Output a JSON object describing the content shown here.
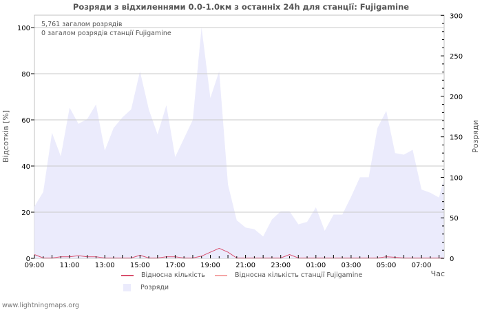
{
  "title": "Розряди з відхиленнями 0.0-1.0км з останніх 24h для станції: Fujigamine",
  "info": {
    "total_discharges": "5,761 загалом розрядів",
    "station_discharges": "0 загалом розрядів станції Fujigamine"
  },
  "axes": {
    "left_title": "Відсотків   [%]",
    "right_title": "Розряди",
    "x_title": "Час",
    "left_ticks": [
      "0",
      "20",
      "40",
      "60",
      "80",
      "100"
    ],
    "right_ticks": [
      "0",
      "50",
      "100",
      "150",
      "200",
      "250",
      "300"
    ],
    "x_ticks": [
      "09:00",
      "11:00",
      "13:00",
      "15:00",
      "17:00",
      "19:00",
      "21:00",
      "23:00",
      "01:00",
      "03:00",
      "05:00",
      "07:00"
    ]
  },
  "legend": [
    {
      "label": "Відносна кількість",
      "kind": "line",
      "color": "#d9506e"
    },
    {
      "label": "Відносна кількість станції Fujigamine",
      "kind": "line",
      "color": "#f4a6a6"
    },
    {
      "label": "Розряди",
      "kind": "area",
      "color": "#ebebfc"
    }
  ],
  "colors": {
    "area_fill": "#ebebfc",
    "relative_line": "#d9506e",
    "station_line": "#f4a6a6",
    "grid": "#c8c8c8",
    "axis": "#c0c0c0"
  },
  "footer": "www.lightningmaps.org",
  "chart_data": {
    "type": "area",
    "title": "Розряди з відхиленнями 0.0-1.0км з останніх 24h для станції: Fujigamine",
    "xlabel": "Час",
    "ylabel_left": "Відсотків [%]",
    "ylabel_right": "Розряди",
    "ylim_left": [
      0,
      105
    ],
    "ylim_right": [
      0,
      300
    ],
    "grid": true,
    "legend_position": "bottom",
    "x": [
      "09:00",
      "09:30",
      "10:00",
      "10:30",
      "11:00",
      "11:30",
      "12:00",
      "12:30",
      "13:00",
      "13:30",
      "14:00",
      "14:30",
      "15:00",
      "15:30",
      "16:00",
      "16:30",
      "17:00",
      "17:30",
      "18:00",
      "18:30",
      "19:00",
      "19:30",
      "20:00",
      "20:30",
      "21:00",
      "21:30",
      "22:00",
      "22:30",
      "23:00",
      "23:30",
      "00:00",
      "00:30",
      "01:00",
      "01:30",
      "02:00",
      "02:30",
      "03:00",
      "03:30",
      "04:00",
      "04:30",
      "05:00",
      "05:30",
      "06:00",
      "06:30",
      "07:00",
      "07:30",
      "08:00",
      "08:15"
    ],
    "series": [
      {
        "name": "Розряди",
        "axis": "right",
        "values": [
          64,
          82,
          155,
          126,
          186,
          166,
          172,
          190,
          133,
          161,
          174,
          184,
          231,
          184,
          153,
          189,
          125,
          148,
          171,
          285,
          198,
          231,
          91,
          47,
          38,
          36,
          27,
          48,
          58,
          58,
          42,
          45,
          63,
          34,
          54,
          54,
          76,
          100,
          100,
          161,
          182,
          130,
          128,
          134,
          85,
          81,
          75,
          96
        ]
      },
      {
        "name": "Відносна кількість",
        "axis": "left",
        "values": [
          1.5,
          0,
          0,
          0.5,
          0.5,
          1,
          0.5,
          0.5,
          0,
          0,
          0,
          0,
          1.2,
          0,
          0,
          0.5,
          0.5,
          0,
          0,
          0.8,
          2.5,
          4.2,
          2.5,
          0,
          0,
          0,
          0,
          0,
          0,
          1.5,
          0,
          0,
          0,
          0,
          0,
          0,
          0,
          0,
          0,
          0,
          0.5,
          0.3,
          0,
          0,
          0,
          0,
          0,
          0
        ]
      },
      {
        "name": "Відносна кількість станції Fujigamine",
        "axis": "left",
        "values": [
          0,
          0,
          0,
          0,
          0,
          0,
          0,
          0,
          0,
          0,
          0,
          0,
          0,
          0,
          0,
          0,
          0,
          0,
          0,
          0,
          0,
          0,
          0,
          0,
          0,
          0,
          0,
          0,
          0,
          0,
          0,
          0,
          0,
          0,
          0,
          0,
          0,
          0,
          0,
          0,
          0,
          0,
          0,
          0,
          0,
          0,
          0,
          0
        ]
      }
    ],
    "annotations": [
      "5,761 загалом розрядів",
      "0 загалом розрядів станції Fujigamine"
    ]
  }
}
